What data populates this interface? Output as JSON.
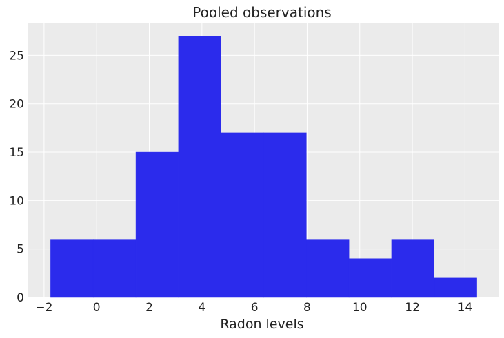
{
  "chart_data": {
    "type": "bar",
    "title": "Pooled observations",
    "xlabel": "Radon levels",
    "ylabel": "",
    "bin_edges": [
      -1.75,
      -0.13,
      1.49,
      3.11,
      4.73,
      6.35,
      7.97,
      9.59,
      11.21,
      12.83,
      14.45
    ],
    "values": [
      6,
      6,
      15,
      27,
      17,
      17,
      6,
      4,
      6,
      2
    ],
    "xlim": [
      -2.6,
      15.3
    ],
    "ylim": [
      0,
      28.3
    ],
    "xticks": [
      -2,
      0,
      2,
      4,
      6,
      8,
      10,
      12,
      14
    ],
    "xtick_labels": [
      "−2",
      "0",
      "2",
      "4",
      "6",
      "8",
      "10",
      "12",
      "14"
    ],
    "yticks": [
      0,
      5,
      10,
      15,
      20,
      25
    ],
    "ytick_labels": [
      "0",
      "5",
      "10",
      "15",
      "20",
      "25"
    ],
    "grid": true,
    "colors": {
      "bar": "#2b2bec",
      "background": "#ebebeb",
      "grid": "#ffffff"
    }
  }
}
